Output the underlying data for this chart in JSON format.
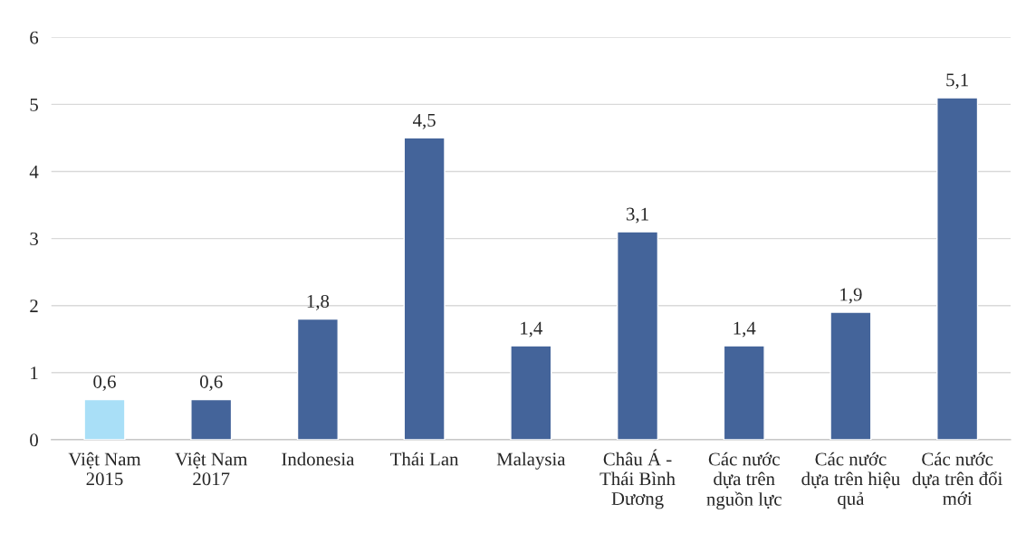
{
  "chart_data": {
    "type": "bar",
    "categories": [
      "Việt Nam\n2015",
      "Việt Nam\n2017",
      "Indonesia",
      "Thái Lan",
      "Malaysia",
      "Châu Á -\nThái Bình\nDương",
      "Các nước\ndựa trên\nnguồn lực",
      "Các nước\ndựa trên hiệu\nquả",
      "Các nước\ndựa trên đổi\nmới"
    ],
    "values": [
      0.6,
      0.6,
      1.8,
      4.5,
      1.4,
      3.1,
      1.4,
      1.9,
      5.1
    ],
    "colors": [
      "#a9dff7",
      "#44649a",
      "#44649a",
      "#44649a",
      "#44649a",
      "#44649a",
      "#44649a",
      "#44649a",
      "#44649a"
    ],
    "value_labels": [
      "0,6",
      "0,6",
      "1,8",
      "4,5",
      "1,4",
      "3,1",
      "1,4",
      "1,9",
      "5,1"
    ],
    "ylim": [
      0,
      6
    ],
    "yticks": [
      0,
      1,
      2,
      3,
      4,
      5,
      6
    ],
    "grid": "y"
  }
}
